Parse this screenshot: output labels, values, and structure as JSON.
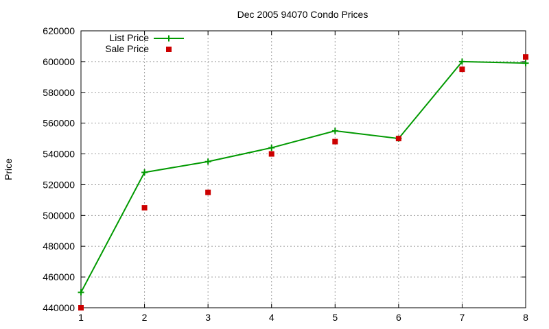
{
  "colors": {
    "list_price": "#009900",
    "sale_price": "#cc0000",
    "grid": "#a0a0a0",
    "axis": "#000000"
  },
  "chart_data": {
    "type": "line",
    "title": "Dec 2005 94070 Condo Prices",
    "xlabel": "",
    "ylabel": "Price",
    "x": [
      1,
      2,
      3,
      4,
      5,
      6,
      7,
      8
    ],
    "xlim": [
      1,
      8
    ],
    "ylim": [
      440000,
      620000
    ],
    "xticks": [
      "1",
      "2",
      "3",
      "4",
      "5",
      "6",
      "7",
      "8"
    ],
    "yticks": [
      "440000",
      "460000",
      "480000",
      "500000",
      "520000",
      "540000",
      "560000",
      "580000",
      "600000",
      "620000"
    ],
    "grid": true,
    "legend_position": "top-left",
    "series": [
      {
        "name": "List Price",
        "style": "line-with-plus-markers",
        "color": "#009900",
        "values": [
          450000,
          528000,
          535000,
          544000,
          555000,
          550000,
          600000,
          599000
        ]
      },
      {
        "name": "Sale Price",
        "style": "square-points",
        "color": "#cc0000",
        "values": [
          440000,
          505000,
          515000,
          540000,
          548000,
          550000,
          595000,
          603000
        ]
      }
    ]
  }
}
